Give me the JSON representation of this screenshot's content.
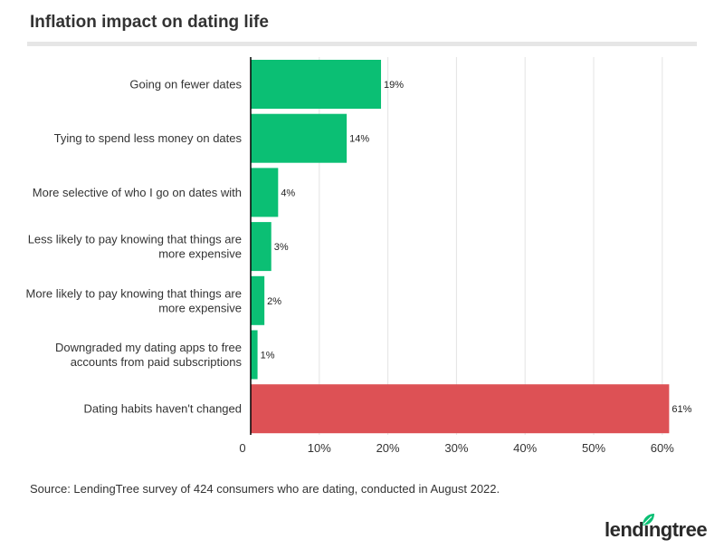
{
  "title": "Inflation impact on dating life",
  "source": "Source: LendingTree survey of 424 consumers who are dating, conducted in August 2022.",
  "logo": {
    "text": "lendingtree",
    "icon": "leaf-icon"
  },
  "colors": {
    "bar_default": "#0bbf74",
    "bar_highlight": "#dd5155",
    "grid": "#e3e3e3",
    "axis": "#000000"
  },
  "chart_data": {
    "type": "bar",
    "orientation": "horizontal",
    "categories": [
      [
        "Going on fewer dates"
      ],
      [
        "Tying to spend less money on dates"
      ],
      [
        "More selective of who I go on dates with"
      ],
      [
        "Less likely to pay knowing that things are",
        "more expensive"
      ],
      [
        "More likely to pay knowing that things are",
        "more expensive"
      ],
      [
        "Downgraded my dating apps to free",
        "accounts from paid subscriptions"
      ],
      [
        "Dating habits haven't changed"
      ]
    ],
    "values": [
      19,
      14,
      4,
      3,
      2,
      1,
      61
    ],
    "value_labels": [
      "19%",
      "14%",
      "4%",
      "3%",
      "2%",
      "1%",
      "61%"
    ],
    "highlight_index": 6,
    "x_ticks": [
      0,
      10,
      20,
      30,
      40,
      50,
      60
    ],
    "x_tick_labels": [
      "0",
      "10%",
      "20%",
      "30%",
      "40%",
      "50%",
      "60%"
    ],
    "xlim": [
      0,
      65
    ],
    "grid": true
  }
}
